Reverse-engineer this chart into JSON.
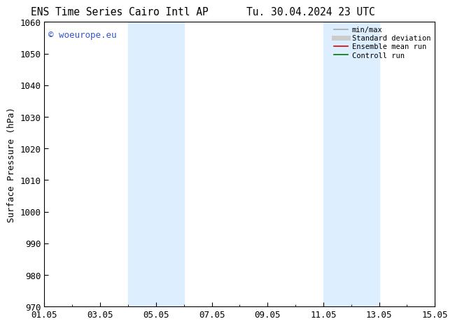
{
  "title_left": "ENS Time Series Cairo Intl AP",
  "title_right": "Tu. 30.04.2024 23 UTC",
  "ylabel": "Surface Pressure (hPa)",
  "xlim": [
    1.05,
    15.05
  ],
  "ylim": [
    970,
    1060
  ],
  "yticks": [
    970,
    980,
    990,
    1000,
    1010,
    1020,
    1030,
    1040,
    1050,
    1060
  ],
  "xtick_labels": [
    "01.05",
    "03.05",
    "05.05",
    "07.05",
    "09.05",
    "11.05",
    "13.05",
    "15.05"
  ],
  "xtick_positions": [
    1.05,
    3.05,
    5.05,
    7.05,
    9.05,
    11.05,
    13.05,
    15.05
  ],
  "shaded_bands": [
    {
      "x_start": 4.05,
      "x_end": 6.05
    },
    {
      "x_start": 11.05,
      "x_end": 13.05
    }
  ],
  "shade_color": "#ddeeff",
  "watermark_text": "© woeurope.eu",
  "watermark_color": "#3355cc",
  "legend_entries": [
    {
      "label": "min/max",
      "color": "#aaaaaa",
      "lw": 1.2
    },
    {
      "label": "Standard deviation",
      "color": "#cccccc",
      "lw": 5
    },
    {
      "label": "Ensemble mean run",
      "color": "#dd0000",
      "lw": 1.2
    },
    {
      "label": "Controll run",
      "color": "#007700",
      "lw": 1.2
    }
  ],
  "bg_color": "#ffffff",
  "font_size": 9,
  "title_font_size": 10.5
}
